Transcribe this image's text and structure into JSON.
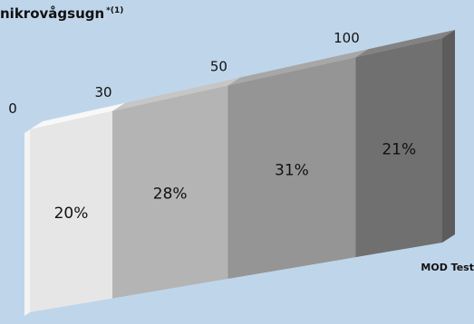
{
  "title": {
    "text": "nikrovågsugn",
    "superscript": "*(1)"
  },
  "source_note": "MOD Test",
  "chart_data": {
    "type": "bar",
    "style": "3d-stacked-panel",
    "categories": [
      "0–30",
      "30–50",
      "50–100",
      "100+"
    ],
    "boundaries": [
      "0",
      "30",
      "50",
      "100"
    ],
    "values": [
      20,
      28,
      31,
      21
    ],
    "value_labels": [
      "20%",
      "28%",
      "31%",
      "21%"
    ],
    "unit": "%",
    "colors": [
      "#e6e6e6",
      "#b4b4b4",
      "#959595",
      "#707070"
    ],
    "title": "nikrovågsugn"
  }
}
